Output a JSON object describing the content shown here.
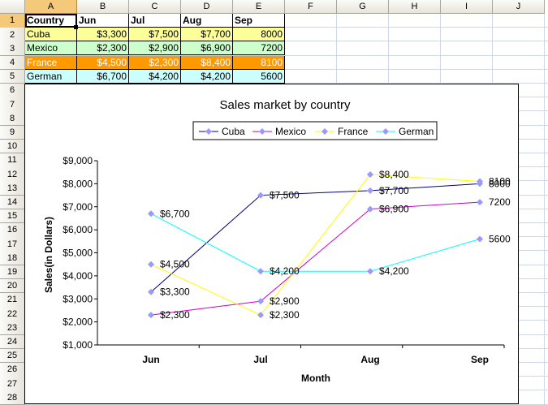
{
  "columns": [
    "A",
    "B",
    "C",
    "D",
    "E",
    "F",
    "G",
    "H",
    "I",
    "J"
  ],
  "rows": [
    "1",
    "2",
    "3",
    "4",
    "5",
    "6",
    "7",
    "8",
    "9",
    "10",
    "11",
    "12",
    "13",
    "14",
    "15",
    "16",
    "17",
    "18",
    "19",
    "20",
    "21",
    "22",
    "23",
    "24",
    "25",
    "26",
    "27",
    "28"
  ],
  "table": {
    "header": [
      "Country",
      "Jun",
      "Jul",
      "Aug",
      "Sep"
    ],
    "rows": [
      {
        "country": "Cuba",
        "values": [
          "$3,300",
          "$7,500",
          "$7,700",
          "8000"
        ],
        "bg": "#ffff99",
        "fg": "#000000"
      },
      {
        "country": "Mexico",
        "values": [
          "$2,300",
          "$2,900",
          "$6,900",
          "7200"
        ],
        "bg": "#ccffcc",
        "fg": "#000000"
      },
      {
        "country": "France",
        "values": [
          "$4,500",
          "$2,300",
          "$8,400",
          "8100"
        ],
        "bg": "#ff9900",
        "fg": "#ffffff"
      },
      {
        "country": "German",
        "values": [
          "$6,700",
          "$4,200",
          "$4,200",
          "5600"
        ],
        "bg": "#ccffff",
        "fg": "#000000"
      }
    ]
  },
  "chart_data": {
    "type": "line",
    "title": "Sales market by country",
    "xlabel": "Month",
    "ylabel": "Sales(in Dollars)",
    "categories": [
      "Jun",
      "Jul",
      "Aug",
      "Sep"
    ],
    "ylim": [
      1000,
      9000
    ],
    "yticks": [
      "$1,000",
      "$2,000",
      "$3,000",
      "$4,000",
      "$5,000",
      "$6,000",
      "$7,000",
      "$8,000",
      "$9,000"
    ],
    "grid": false,
    "legend": "top",
    "series": [
      {
        "name": "Cuba",
        "values": [
          3300,
          7500,
          7700,
          8000
        ],
        "labels": [
          "$3,300",
          "$7,500",
          "$7,700",
          "8000"
        ],
        "color": "#000080"
      },
      {
        "name": "Mexico",
        "values": [
          2300,
          2900,
          6900,
          7200
        ],
        "labels": [
          "$2,300",
          "$2,900",
          "$6,900",
          "7200"
        ],
        "color": "#cc00cc"
      },
      {
        "name": "France",
        "values": [
          4500,
          2300,
          8400,
          8100
        ],
        "labels": [
          "$4,500",
          "$2,300",
          "$8,400",
          "8100"
        ],
        "color": "#ffff00"
      },
      {
        "name": "German",
        "values": [
          6700,
          4200,
          4200,
          5600
        ],
        "labels": [
          "$6,700",
          "$4,200",
          "$4,200",
          "5600"
        ],
        "color": "#00ffff"
      }
    ],
    "marker_color": "#9999ff"
  }
}
